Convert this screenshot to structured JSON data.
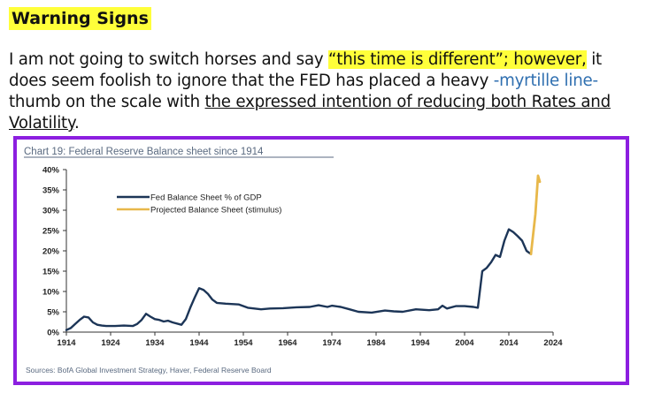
{
  "heading": "Warning Signs",
  "paragraph": {
    "p1": "I am not going to switch horses and say ",
    "p2": "“this time is different”; however,",
    "p3": " it does seem foolish to ignore that the FED has placed a heavy ",
    "p4": "-myrtille line-",
    "p5": " thumb on the scale with ",
    "p6": "the expressed intention of reducing both Rates and Volatility",
    "p7": "."
  },
  "colors": {
    "highlight": "#ffff3a",
    "frame": "#8c1fe0",
    "series_fed": "#1c3557",
    "series_projected": "#e8b84a"
  },
  "chart_data": {
    "type": "line",
    "title": "Chart 19: Federal Reserve Balance sheet since 1914",
    "source": "Sources: BofA Global Investment Strategy, Haver, Federal Reserve Board",
    "xlim": [
      1914,
      2024
    ],
    "ylim": [
      0,
      40
    ],
    "x_ticks": [
      "1914",
      "1924",
      "1934",
      "1944",
      "1954",
      "1964",
      "1974",
      "1984",
      "1994",
      "2004",
      "2014",
      "2024"
    ],
    "y_ticks": [
      "0%",
      "5%",
      "10%",
      "15%",
      "20%",
      "25%",
      "30%",
      "35%",
      "40%"
    ],
    "legend_position": "top-left",
    "series": [
      {
        "name": "Fed Balance Sheet % of GDP",
        "x": [
          1914,
          1915,
          1916,
          1917,
          1918,
          1919,
          1920,
          1921,
          1922,
          1923,
          1925,
          1927,
          1929,
          1930,
          1931,
          1932,
          1933,
          1934,
          1935,
          1936,
          1937,
          1938,
          1940,
          1941,
          1942,
          1943,
          1944,
          1945,
          1946,
          1947,
          1948,
          1950,
          1953,
          1955,
          1958,
          1960,
          1963,
          1966,
          1969,
          1971,
          1973,
          1974,
          1976,
          1978,
          1980,
          1983,
          1986,
          1988,
          1990,
          1993,
          1996,
          1998,
          1999,
          2000,
          2002,
          2004,
          2006,
          2007,
          2008,
          2009,
          2010,
          2011,
          2012,
          2013,
          2014,
          2015,
          2016,
          2017,
          2018,
          2019
        ],
        "y": [
          0.5,
          1,
          2,
          3,
          3.8,
          3.6,
          2.4,
          1.8,
          1.6,
          1.5,
          1.5,
          1.6,
          1.5,
          2,
          3,
          4.5,
          3.8,
          3.2,
          3,
          2.6,
          2.8,
          2.4,
          1.8,
          3.2,
          6,
          8.5,
          10.8,
          10.4,
          9.4,
          8,
          7.2,
          7,
          6.8,
          6,
          5.6,
          5.8,
          5.9,
          6.1,
          6.2,
          6.6,
          6.2,
          6.5,
          6.2,
          5.6,
          5,
          4.8,
          5.3,
          5.1,
          5,
          5.6,
          5.4,
          5.6,
          6.5,
          5.8,
          6.4,
          6.4,
          6.2,
          6,
          15,
          15.8,
          17.2,
          19,
          18.5,
          22.5,
          25.3,
          24.6,
          23.6,
          22.5,
          20,
          19.2
        ],
        "color": "#1c3557"
      },
      {
        "name": "Projected Balance Sheet (stimulus)",
        "x": [
          2019,
          2020,
          2020.6,
          2021
        ],
        "y": [
          19.2,
          29,
          38.5,
          37
        ],
        "color": "#e8b84a"
      }
    ]
  }
}
